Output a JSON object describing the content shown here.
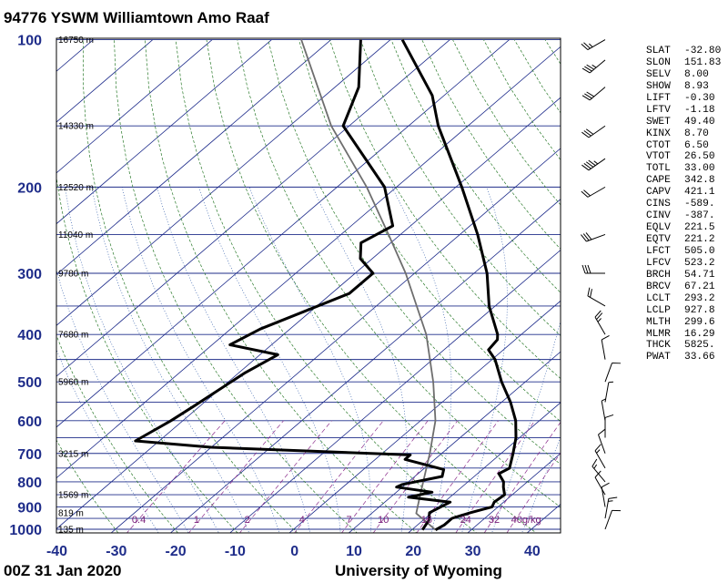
{
  "title": "94776 YSWM Williamtown Amo Raaf",
  "footer_left": "00Z 31 Jan 2020",
  "footer_right": "University of Wyoming",
  "colors": {
    "axis_blue": "#1f2d8a",
    "isotherm": "#1c2a8a",
    "dry_adiabat": "#2a7a2a",
    "moist_adiabat": "#1a4aa0",
    "mixing_ratio": "#8a2a8a",
    "parcel": "#6e6e6e",
    "profile": "#000000"
  },
  "chart_data": {
    "type": "skew-t log-p sounding",
    "y_axis": "pressure (hPa), log scale",
    "x_axis": "temperature (°C), skewed",
    "pressure_ticks": [
      100,
      200,
      300,
      400,
      500,
      600,
      700,
      800,
      900,
      1000
    ],
    "temp_ticks": [
      -40,
      -30,
      -20,
      -10,
      0,
      10,
      20,
      30,
      40
    ],
    "xlim": [
      -40,
      45
    ],
    "ylim": [
      1050,
      100
    ],
    "height_labels": [
      {
        "p": 100,
        "text": "16750 m"
      },
      {
        "p": 150,
        "text": "14330 m"
      },
      {
        "p": 200,
        "text": "12520 m"
      },
      {
        "p": 250,
        "text": "11040 m"
      },
      {
        "p": 300,
        "text": "9780 m"
      },
      {
        "p": 400,
        "text": "7680 m"
      },
      {
        "p": 500,
        "text": "5960 m"
      },
      {
        "p": 700,
        "text": "3215 m"
      },
      {
        "p": 850,
        "text": "1569 m"
      },
      {
        "p": 925,
        "text": "819 m"
      },
      {
        "p": 1000,
        "text": "135 m"
      }
    ],
    "mixing_ratio_labels": [
      "0.4",
      "1",
      "2",
      "4",
      "7",
      "10",
      "16",
      "24",
      "32",
      "40g/kg"
    ],
    "temperature": [
      {
        "p": 1003,
        "t": 24.0
      },
      {
        "p": 980,
        "t": 24.5
      },
      {
        "p": 950,
        "t": 24.5
      },
      {
        "p": 925,
        "t": 26.5
      },
      {
        "p": 900,
        "t": 29.0
      },
      {
        "p": 880,
        "t": 28.4
      },
      {
        "p": 850,
        "t": 28.7
      },
      {
        "p": 820,
        "t": 27.0
      },
      {
        "p": 800,
        "t": 26.0
      },
      {
        "p": 770,
        "t": 23.6
      },
      {
        "p": 750,
        "t": 24.3
      },
      {
        "p": 700,
        "t": 22.0
      },
      {
        "p": 650,
        "t": 19.4
      },
      {
        "p": 600,
        "t": 16.0
      },
      {
        "p": 550,
        "t": 11.5
      },
      {
        "p": 500,
        "t": 6.0
      },
      {
        "p": 450,
        "t": 0.5
      },
      {
        "p": 430,
        "t": -2.5
      },
      {
        "p": 410,
        "t": -3.0
      },
      {
        "p": 400,
        "t": -4.0
      },
      {
        "p": 350,
        "t": -11.0
      },
      {
        "p": 300,
        "t": -17.8
      },
      {
        "p": 250,
        "t": -27.0
      },
      {
        "p": 200,
        "t": -39.0
      },
      {
        "p": 150,
        "t": -55.0
      },
      {
        "p": 130,
        "t": -62.0
      },
      {
        "p": 100,
        "t": -78.0
      }
    ],
    "dewpoint": [
      {
        "p": 1003,
        "t": 21.8
      },
      {
        "p": 960,
        "t": 21.0
      },
      {
        "p": 925,
        "t": 19.6
      },
      {
        "p": 880,
        "t": 21.0
      },
      {
        "p": 860,
        "t": 13.0
      },
      {
        "p": 840,
        "t": 16.0
      },
      {
        "p": 820,
        "t": 9.0
      },
      {
        "p": 810,
        "t": 9.5
      },
      {
        "p": 780,
        "t": 14.6
      },
      {
        "p": 755,
        "t": 13.5
      },
      {
        "p": 720,
        "t": 5.0
      },
      {
        "p": 705,
        "t": 5.0
      },
      {
        "p": 680,
        "t": -30.0
      },
      {
        "p": 660,
        "t": -44.0
      },
      {
        "p": 600,
        "t": -42.0
      },
      {
        "p": 560,
        "t": -41.0
      },
      {
        "p": 480,
        "t": -39.0
      },
      {
        "p": 440,
        "t": -37.0
      },
      {
        "p": 420,
        "t": -47.0
      },
      {
        "p": 390,
        "t": -45.0
      },
      {
        "p": 330,
        "t": -37.0
      },
      {
        "p": 300,
        "t": -37.0
      },
      {
        "p": 280,
        "t": -42.0
      },
      {
        "p": 260,
        "t": -45.0
      },
      {
        "p": 240,
        "t": -43.0
      },
      {
        "p": 200,
        "t": -52.0
      },
      {
        "p": 150,
        "t": -71.0
      },
      {
        "p": 125,
        "t": -76.0
      },
      {
        "p": 100,
        "t": -85.0
      }
    ],
    "parcel_path": [
      {
        "p": 1003,
        "t": 24.0
      },
      {
        "p": 928,
        "t": 17.5
      },
      {
        "p": 850,
        "t": 14.5
      },
      {
        "p": 700,
        "t": 8.0
      },
      {
        "p": 600,
        "t": 2.5
      },
      {
        "p": 500,
        "t": -5.5
      },
      {
        "p": 400,
        "t": -16.0
      },
      {
        "p": 300,
        "t": -31.5
      },
      {
        "p": 250,
        "t": -42.0
      },
      {
        "p": 200,
        "t": -55.0
      },
      {
        "p": 150,
        "t": -73.0
      },
      {
        "p": 100,
        "t": -95.0
      }
    ],
    "wind_barbs": [
      {
        "p": 1000,
        "dir": 20,
        "spd": 10
      },
      {
        "p": 950,
        "dir": 10,
        "spd": 15
      },
      {
        "p": 900,
        "dir": 350,
        "spd": 10
      },
      {
        "p": 850,
        "dir": 330,
        "spd": 10
      },
      {
        "p": 800,
        "dir": 320,
        "spd": 15
      },
      {
        "p": 750,
        "dir": 330,
        "spd": 15
      },
      {
        "p": 700,
        "dir": 340,
        "spd": 10
      },
      {
        "p": 650,
        "dir": 360,
        "spd": 10
      },
      {
        "p": 600,
        "dir": 350,
        "spd": 5
      },
      {
        "p": 550,
        "dir": 10,
        "spd": 5
      },
      {
        "p": 500,
        "dir": 20,
        "spd": 10
      },
      {
        "p": 450,
        "dir": 350,
        "spd": 10
      },
      {
        "p": 400,
        "dir": 330,
        "spd": 25
      },
      {
        "p": 350,
        "dir": 300,
        "spd": 20
      },
      {
        "p": 300,
        "dir": 270,
        "spd": 30
      },
      {
        "p": 250,
        "dir": 250,
        "spd": 30
      },
      {
        "p": 200,
        "dir": 240,
        "spd": 20
      },
      {
        "p": 175,
        "dir": 235,
        "spd": 45
      },
      {
        "p": 150,
        "dir": 235,
        "spd": 30
      },
      {
        "p": 125,
        "dir": 230,
        "spd": 30
      },
      {
        "p": 110,
        "dir": 230,
        "spd": 35
      },
      {
        "p": 100,
        "dir": 240,
        "spd": 25
      }
    ],
    "indices": [
      {
        "label": "SLAT",
        "value": "-32.80"
      },
      {
        "label": "SLON",
        "value": "151.83"
      },
      {
        "label": "SELV",
        "value": "8.00"
      },
      {
        "label": "SHOW",
        "value": "8.93"
      },
      {
        "label": "LIFT",
        "value": "-0.30"
      },
      {
        "label": "LFTV",
        "value": "-1.18"
      },
      {
        "label": "SWET",
        "value": "49.40"
      },
      {
        "label": "KINX",
        "value": "8.70"
      },
      {
        "label": "CTOT",
        "value": "6.50"
      },
      {
        "label": "VTOT",
        "value": "26.50"
      },
      {
        "label": "TOTL",
        "value": "33.00"
      },
      {
        "label": "CAPE",
        "value": "342.8"
      },
      {
        "label": "CAPV",
        "value": "421.1"
      },
      {
        "label": "CINS",
        "value": "-589."
      },
      {
        "label": "CINV",
        "value": "-387."
      },
      {
        "label": "EQLV",
        "value": "221.5"
      },
      {
        "label": "EQTV",
        "value": "221.2"
      },
      {
        "label": "LFCT",
        "value": "505.0"
      },
      {
        "label": "LFCV",
        "value": "523.2"
      },
      {
        "label": "BRCH",
        "value": "54.71"
      },
      {
        "label": "BRCV",
        "value": "67.21"
      },
      {
        "label": "LCLT",
        "value": "293.2"
      },
      {
        "label": "LCLP",
        "value": "927.8"
      },
      {
        "label": "MLTH",
        "value": "299.6"
      },
      {
        "label": "MLMR",
        "value": "16.29"
      },
      {
        "label": "THCK",
        "value": "5825."
      },
      {
        "label": "PWAT",
        "value": "33.66"
      }
    ]
  }
}
